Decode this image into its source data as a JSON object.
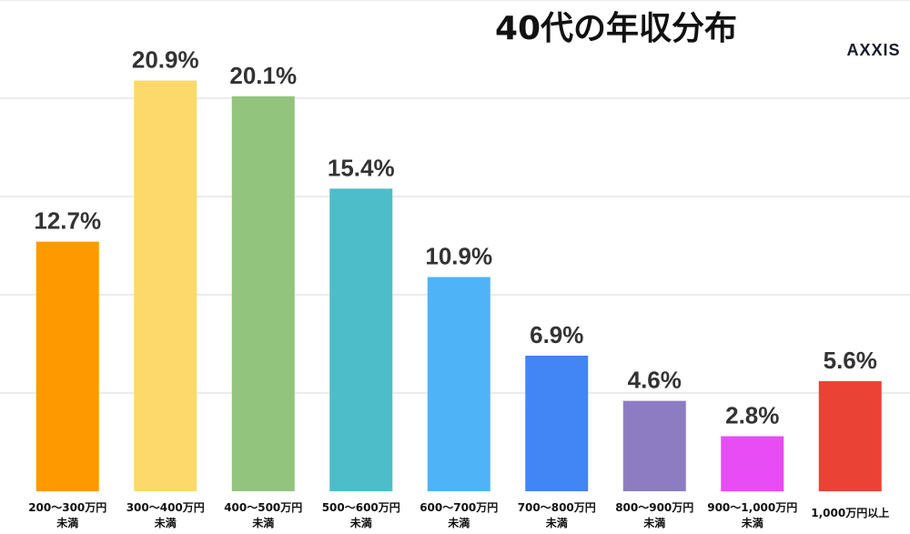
{
  "chart_data": {
    "type": "bar",
    "title": "40代の年収分布",
    "xlabel": "",
    "ylabel": "",
    "ylim": [
      0,
      25
    ],
    "grid": true,
    "categories": [
      [
        "200〜300万円",
        "未満"
      ],
      [
        "300〜400万円",
        "未満"
      ],
      [
        "400〜500万円",
        "未満"
      ],
      [
        "500〜600万円",
        "未満"
      ],
      [
        "600〜700万円",
        "未満"
      ],
      [
        "700〜800万円",
        "未満"
      ],
      [
        "800〜900万円",
        "未満"
      ],
      [
        "900〜1,000万円",
        "未満"
      ],
      [
        "1,000万円以上"
      ]
    ],
    "values": [
      12.7,
      20.9,
      20.1,
      15.4,
      10.9,
      6.9,
      4.6,
      2.8,
      5.6
    ],
    "value_labels": [
      "12.7%",
      "20.9%",
      "20.1%",
      "15.4%",
      "10.9%",
      "6.9%",
      "4.6%",
      "2.8%",
      "5.6%"
    ],
    "colors": [
      "#ff9900",
      "#fcd96a",
      "#93c47d",
      "#4dbdc9",
      "#4fb3f7",
      "#4285f4",
      "#8e7cc3",
      "#e74cf5",
      "#ea4335"
    ]
  },
  "brand": "AXXIS"
}
